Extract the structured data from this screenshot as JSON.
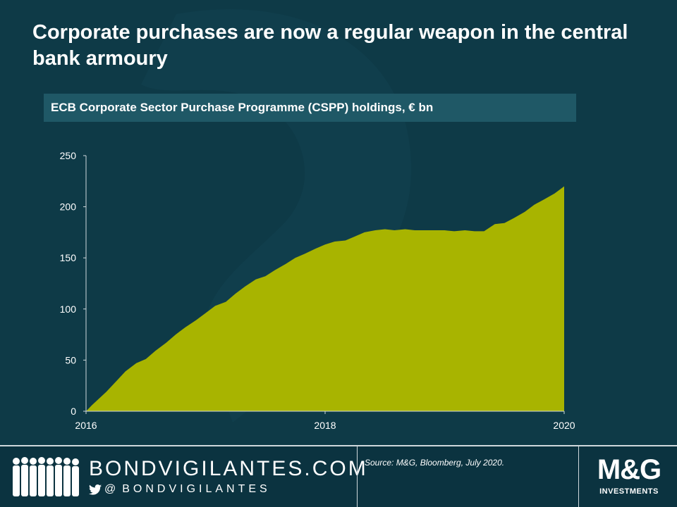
{
  "header": {
    "title": "Corporate purchases are now a regular weapon in the central bank armoury",
    "subtitle": "ECB Corporate Sector Purchase Programme (CSPP) holdings, € bn"
  },
  "chart_data": {
    "type": "area",
    "title": "ECB Corporate Sector Purchase Programme (CSPP) holdings, € bn",
    "xlabel": "",
    "ylabel": "",
    "x_tick_labels": [
      "2016",
      "2018",
      "2020"
    ],
    "y_tick_labels": [
      "0",
      "50",
      "100",
      "150",
      "200",
      "250"
    ],
    "ylim": [
      0,
      250
    ],
    "xlim": [
      2016.0,
      2020.0
    ],
    "grid": false,
    "legend": "none",
    "fill_color": "#a8b400",
    "series": [
      {
        "x": [
          2016.0,
          2016.05,
          2016.17,
          2016.25,
          2016.33,
          2016.42,
          2016.5,
          2016.58,
          2016.67,
          2016.75,
          2016.83,
          2016.92,
          2017.0,
          2017.08,
          2017.17,
          2017.25,
          2017.33,
          2017.42,
          2017.5,
          2017.58,
          2017.67,
          2017.75,
          2017.83,
          2017.92,
          2018.0,
          2018.08,
          2018.17,
          2018.25,
          2018.33,
          2018.42,
          2018.5,
          2018.58,
          2018.67,
          2018.75,
          2018.83,
          2018.92,
          2019.0,
          2019.08,
          2019.17,
          2019.25,
          2019.33,
          2019.42,
          2019.5,
          2019.58,
          2019.67,
          2019.75,
          2019.83,
          2019.92,
          2020.0
        ],
        "values": [
          0,
          6,
          19,
          29,
          39,
          47,
          51,
          59,
          67,
          75,
          82,
          89,
          96,
          103,
          107,
          115,
          122,
          129,
          132,
          138,
          144,
          150,
          154,
          159,
          163,
          166,
          167,
          171,
          175,
          177,
          178,
          177,
          178,
          177,
          177,
          177,
          177,
          176,
          177,
          176,
          176,
          183,
          184,
          189,
          195,
          202,
          207,
          213,
          220
        ]
      }
    ]
  },
  "footer": {
    "brand": "BONDVIGILANTES.COM",
    "handle_prefix": "@",
    "handle": "BONDVIGILANTES",
    "source": "Source: M&G, Bloomberg, July 2020.",
    "logo": "M&G",
    "logo_sub": "INVESTMENTS"
  }
}
